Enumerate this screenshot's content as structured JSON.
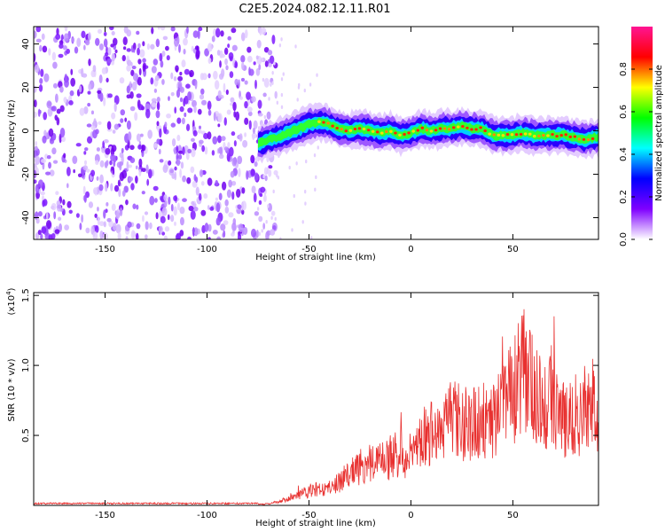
{
  "figure_title": "C2E5.2024.082.12.11.R01",
  "chart_data": [
    {
      "type": "heatmap",
      "title": "C2E5.2024.082.12.11.R01",
      "xlabel": "Height of straight line (km)",
      "ylabel": "Frequency (Hz)",
      "xlim": [
        -185,
        92
      ],
      "ylim": [
        -50,
        48
      ],
      "xticks": [
        -150,
        -100,
        -50,
        0,
        50
      ],
      "xtick_labels": [
        "-150",
        "-100",
        "-50",
        "0",
        "50"
      ],
      "yticks": [
        -40,
        -20,
        0,
        20,
        40
      ],
      "ytick_labels": [
        "-40",
        "-20",
        "0",
        "20",
        "40"
      ],
      "noise_region_km": [
        -185,
        -72
      ],
      "signal_region_km": [
        -75,
        92
      ],
      "ridge": {
        "x": [
          -75,
          -70,
          -65,
          -60,
          -55,
          -50,
          -45,
          -40,
          -35,
          -30,
          -25,
          -20,
          -15,
          -10,
          -5,
          0,
          5,
          10,
          15,
          20,
          25,
          30,
          35,
          40,
          45,
          50,
          55,
          60,
          65,
          70,
          75,
          80,
          85,
          90
        ],
        "y": [
          -6,
          -4,
          -3,
          -1,
          1,
          3,
          4,
          3,
          1,
          0,
          1,
          0,
          -1,
          0,
          -2,
          -1,
          1,
          0,
          1,
          1,
          2,
          1,
          1,
          -2,
          -2,
          -2,
          -1,
          -2,
          -2,
          -2,
          -2,
          -3,
          -4,
          -3
        ]
      },
      "colorbar": {
        "label": "Normalized spectral amplitude",
        "range": [
          0,
          1
        ],
        "ticks": [
          0.0,
          0.2,
          0.4,
          0.6,
          0.8
        ],
        "tick_labels": [
          "0.0",
          "0.2",
          "0.4",
          "0.6",
          "0.8"
        ],
        "colormap": [
          "#ffffff",
          "#7f00ff",
          "#0000ff",
          "#00ffff",
          "#00ff00",
          "#ffff00",
          "#ff0000",
          "#ff1493"
        ]
      }
    },
    {
      "type": "line",
      "xlabel": "Height of straight line (km)",
      "ylabel": "SNR (10 * v/v)",
      "scale_label_prefix": "(x10",
      "scale_label_exp": "4",
      "scale_label_suffix": ")",
      "xlim": [
        -185,
        92
      ],
      "ylim": [
        0,
        1.52
      ],
      "xticks": [
        -150,
        -100,
        -50,
        0,
        50
      ],
      "xtick_labels": [
        "-150",
        "-100",
        "-50",
        "0",
        "50"
      ],
      "yticks": [
        0.5,
        1.0,
        1.5
      ],
      "ytick_labels": [
        "0.5",
        "1.0",
        "1.5"
      ],
      "line_color": "#e8302f",
      "series": [
        {
          "name": "SNR",
          "x": [
            -185,
            -160,
            -130,
            -100,
            -80,
            -72,
            -65,
            -60,
            -55,
            -50,
            -45,
            -40,
            -35,
            -30,
            -25,
            -20,
            -15,
            -10,
            -5,
            0,
            5,
            10,
            15,
            20,
            25,
            30,
            35,
            40,
            45,
            50,
            55,
            60,
            65,
            70,
            75,
            80,
            85,
            90,
            92
          ],
          "values": [
            0.01,
            0.01,
            0.01,
            0.01,
            0.01,
            0.01,
            0.03,
            0.06,
            0.09,
            0.12,
            0.14,
            0.15,
            0.2,
            0.28,
            0.32,
            0.35,
            0.36,
            0.4,
            0.42,
            0.43,
            0.55,
            0.6,
            0.6,
            0.72,
            0.7,
            0.7,
            0.75,
            0.72,
            0.8,
            0.95,
            1.15,
            1.0,
            0.9,
            0.85,
            0.72,
            0.75,
            0.8,
            0.9,
            0.45
          ]
        }
      ]
    }
  ]
}
